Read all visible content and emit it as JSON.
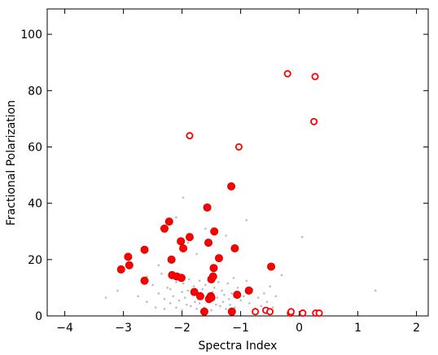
{
  "chart_data": {
    "type": "scatter",
    "xlabel": "Spectra Index",
    "ylabel": "Fractional Polarization",
    "xlim": [
      -4.3,
      2.2
    ],
    "ylim": [
      0,
      109
    ],
    "xticks": [
      -4,
      -3,
      -2,
      -1,
      0,
      1,
      2
    ],
    "yticks": [
      0,
      20,
      40,
      60,
      80,
      100
    ],
    "xtick_labels": [
      "−4",
      "−3",
      "−2",
      "−1",
      "0",
      "1",
      "2"
    ],
    "ytick_labels": [
      "0",
      "20",
      "40",
      "60",
      "80",
      "100"
    ],
    "grid": false,
    "colors": {
      "marker": "#ff0000",
      "marker_edge": "#cc0000",
      "background_points": "#bbbbbb"
    },
    "series": [
      {
        "marker": "filled-circle",
        "x": [
          -3.04,
          -2.92,
          -2.9,
          -2.64,
          -2.64,
          -2.3,
          -2.22,
          -2.18,
          -2.17,
          -2.09,
          -2.02,
          -2.01,
          -1.98,
          -1.87,
          -1.79,
          -1.69,
          -1.62,
          -1.57,
          -1.55,
          -1.54,
          -1.51,
          -1.5,
          -1.5,
          -1.47,
          -1.46,
          -1.45,
          -1.37,
          -1.16,
          -1.15,
          -1.1,
          -1.06,
          -0.86,
          -0.48
        ],
        "y": [
          16.5,
          21.0,
          18.0,
          23.5,
          12.5,
          31.0,
          33.5,
          20.0,
          14.5,
          14.0,
          26.5,
          13.5,
          24.0,
          28.0,
          8.5,
          7.0,
          1.5,
          38.5,
          26.0,
          6.0,
          7.0,
          13.0,
          6.5,
          14.0,
          17.0,
          30.0,
          20.5,
          46.0,
          1.5,
          24.0,
          7.5,
          9.0,
          17.5
        ]
      },
      {
        "marker": "open-circle",
        "x": [
          -1.87,
          -1.03,
          -0.75,
          -0.57,
          -0.5,
          -0.2,
          -0.15,
          -0.14,
          0.06,
          0.25,
          0.27,
          0.28,
          0.34
        ],
        "y": [
          64.0,
          60.0,
          1.5,
          2.0,
          1.5,
          86.0,
          1.0,
          1.5,
          1.0,
          69.0,
          85.0,
          1.0,
          1.0
        ]
      },
      {
        "marker": "faint-background-points",
        "x": [
          -3.3,
          -3.1,
          -2.75,
          -2.6,
          -2.5,
          -2.45,
          -2.4,
          -2.35,
          -2.3,
          -2.3,
          -2.25,
          -2.2,
          -2.2,
          -2.15,
          -2.1,
          -2.1,
          -2.05,
          -2.0,
          -2.0,
          -1.98,
          -1.95,
          -1.92,
          -1.9,
          -1.88,
          -1.85,
          -1.82,
          -1.8,
          -1.78,
          -1.75,
          -1.72,
          -1.7,
          -1.7,
          -1.68,
          -1.65,
          -1.62,
          -1.6,
          -1.58,
          -1.55,
          -1.52,
          -1.5,
          -1.48,
          -1.45,
          -1.42,
          -1.4,
          -1.38,
          -1.35,
          -1.32,
          -1.3,
          -1.28,
          -1.25,
          -1.22,
          -1.2,
          -1.18,
          -1.15,
          -1.12,
          -1.1,
          -1.05,
          -1.0,
          -0.95,
          -0.9,
          -0.85,
          -0.8,
          -0.75,
          -0.7,
          -0.65,
          -0.6,
          -0.55,
          -0.5,
          -0.45,
          -0.4,
          -0.3,
          0.05,
          1.3,
          -1.98,
          -2.1,
          -1.9,
          -1.6,
          -1.4,
          -2.4,
          -2.6,
          -1.75,
          -1.25,
          -0.9
        ],
        "y": [
          6.5,
          9.0,
          7.0,
          5.0,
          11.0,
          3.0,
          8.0,
          15.0,
          2.5,
          6.0,
          10.0,
          4.5,
          9.5,
          7.0,
          3.0,
          12.0,
          5.5,
          8.5,
          2.0,
          11.5,
          6.5,
          4.0,
          9.0,
          13.0,
          3.5,
          7.5,
          10.5,
          5.0,
          2.5,
          8.0,
          12.5,
          4.5,
          6.0,
          9.5,
          3.0,
          11.0,
          7.0,
          5.5,
          14.0,
          2.0,
          8.5,
          10.0,
          4.0,
          6.5,
          12.0,
          3.5,
          9.0,
          5.0,
          7.5,
          2.5,
          11.5,
          6.0,
          4.0,
          8.0,
          13.5,
          3.0,
          10.0,
          5.5,
          7.0,
          12.5,
          4.5,
          9.5,
          2.5,
          6.5,
          3.5,
          8.0,
          5.0,
          10.5,
          3.0,
          7.0,
          14.5,
          28.0,
          9.0,
          42.0,
          35.0,
          26.0,
          31.0,
          30.0,
          18.0,
          14.0,
          22.0,
          28.5,
          34.0
        ]
      }
    ]
  }
}
